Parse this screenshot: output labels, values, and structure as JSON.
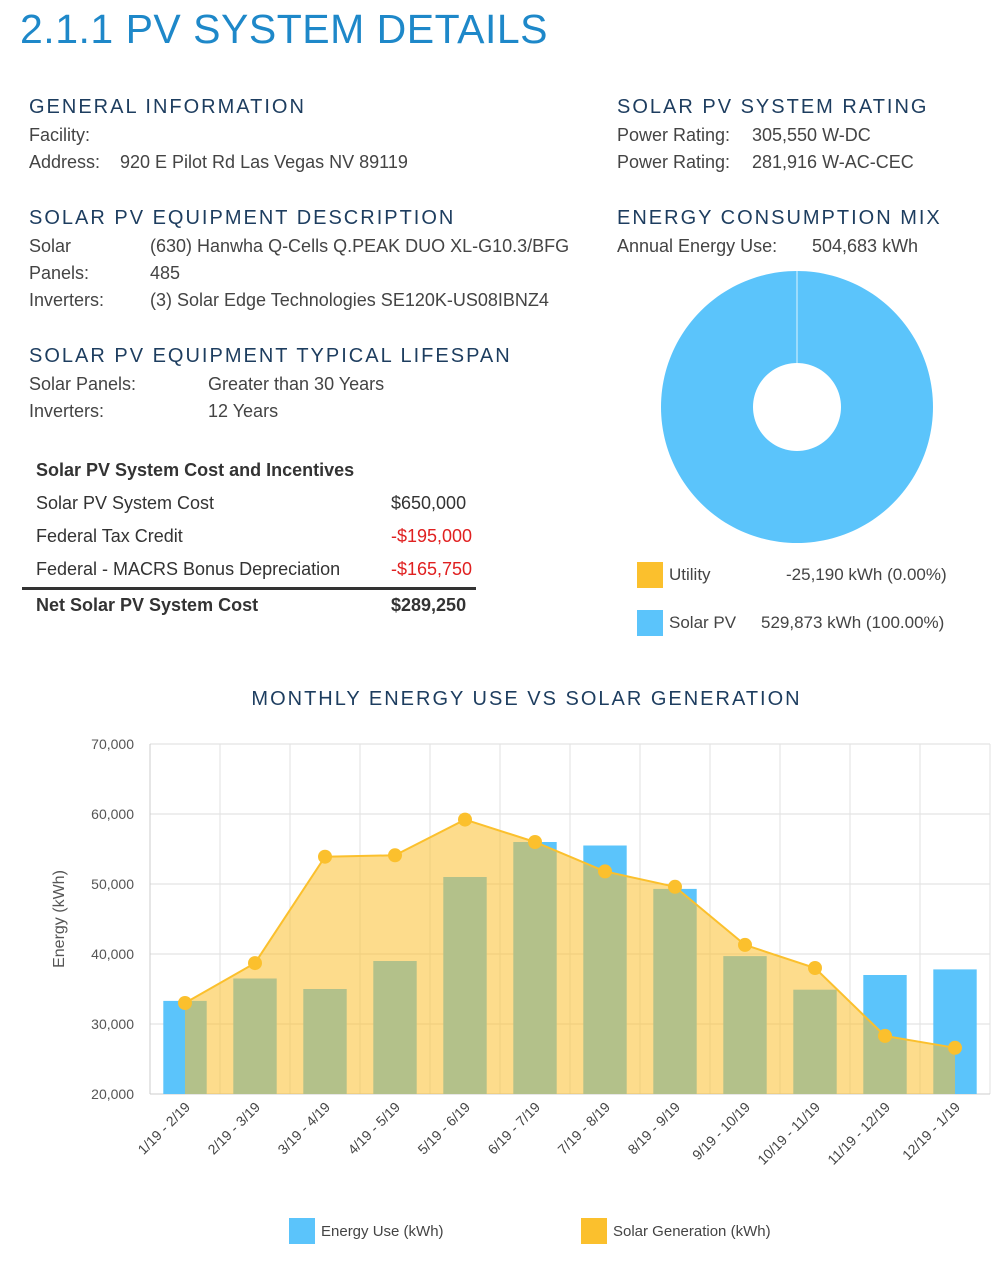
{
  "title": "2.1.1 PV SYSTEM DETAILS",
  "general": {
    "heading": "GENERAL INFORMATION",
    "facility_label": "Facility:",
    "address_label": "Address:",
    "address_value": "920 E Pilot Rd Las Vegas NV 89119"
  },
  "equipment": {
    "heading": "SOLAR PV EQUIPMENT DESCRIPTION",
    "solar_label": "Solar",
    "solar_value": "(630) Hanwha Q-Cells Q.PEAK DUO XL-G10.3/BFG",
    "panels_label": "Panels:",
    "panels_value": "485",
    "inverters_label": "Inverters:",
    "inverters_value": "(3) Solar Edge Technologies SE120K-US08IBNZ4"
  },
  "lifespan": {
    "heading": "SOLAR PV EQUIPMENT TYPICAL LIFESPAN",
    "panels_label": "Solar Panels:",
    "panels_value": "Greater than 30 Years",
    "inverters_label": "Inverters:",
    "inverters_value": "12 Years"
  },
  "cost": {
    "heading": "Solar PV System Cost and Incentives",
    "rows": [
      {
        "label": "Solar PV System Cost",
        "value": "$650,000"
      },
      {
        "label": "Federal Tax Credit",
        "value": "-$195,000"
      },
      {
        "label": "Federal - MACRS Bonus Depreciation",
        "value": "-$165,750"
      }
    ],
    "net_label": "Net Solar PV System Cost",
    "net_value": "$289,250"
  },
  "rating": {
    "heading": "SOLAR PV SYSTEM RATING",
    "dc_label": "Power Rating:",
    "dc_value": "305,550 W-DC",
    "ac_label": "Power Rating:",
    "ac_value": "281,916 W-AC-CEC"
  },
  "mix": {
    "heading": "ENERGY CONSUMPTION MIX",
    "annual_label": "Annual Energy Use:",
    "annual_value": "504,683 kWh"
  },
  "colors": {
    "accent_title": "#1e88c9",
    "heading": "#1d3d5f",
    "energy_use": "#5bc4fb",
    "solar_generation": "#fbc02d",
    "negative": "#e02020"
  },
  "chart_data": [
    {
      "type": "pie",
      "donut": true,
      "slices": [
        {
          "name": "Utility",
          "label": "-25,190 kWh (0.00%)",
          "value": 0,
          "color": "#fbc02d"
        },
        {
          "name": "Solar PV",
          "label": "529,873 kWh (100.00%)",
          "value": 100,
          "color": "#5bc4fb"
        }
      ],
      "legend_position": "bottom"
    },
    {
      "type": "bar",
      "title": "MONTHLY ENERGY USE VS SOLAR GENERATION",
      "ylabel": "Energy (kWh)",
      "xlabel": "",
      "categories": [
        "1/19 - 2/19",
        "2/19 - 3/19",
        "3/19 - 4/19",
        "4/19 - 5/19",
        "5/19 - 6/19",
        "6/19 - 7/19",
        "7/19 - 8/19",
        "8/19 - 9/19",
        "9/19 - 10/19",
        "10/19 - 11/19",
        "11/19 - 12/19",
        "12/19 - 1/19"
      ],
      "ylim": [
        20000,
        70000
      ],
      "yticks": [
        "20,000",
        "30,000",
        "40,000",
        "50,000",
        "60,000",
        "70,000"
      ],
      "grid": true,
      "legend_position": "bottom",
      "series": [
        {
          "name": "Energy Use (kWh)",
          "kind": "bar",
          "color": "#5bc4fb",
          "values": [
            33300,
            36500,
            35000,
            39000,
            51000,
            56000,
            55500,
            49300,
            39700,
            34900,
            37000,
            37800
          ]
        },
        {
          "name": "Solar Generation (kWh)",
          "kind": "area",
          "color": "#fbc02d",
          "values": [
            33000,
            38700,
            53900,
            54100,
            59200,
            56000,
            51800,
            49600,
            41300,
            38000,
            28300,
            26600
          ]
        }
      ]
    }
  ]
}
